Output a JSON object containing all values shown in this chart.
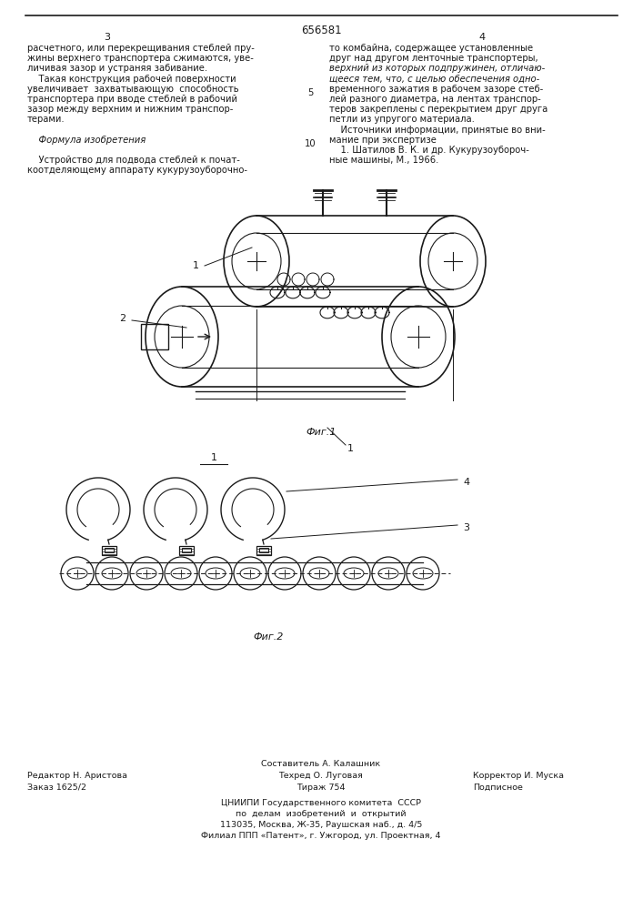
{
  "patent_number": "656581",
  "page_left": "3",
  "page_right": "4",
  "col_left_text": [
    "расчетного, или перекрещивания стеблей пру-",
    "жины верхнего транспортера сжимаются, уве-",
    "личивая зазор и устраняя забивание.",
    "    Такая конструкция рабочей поверхности",
    "увеличивает  захватывающую  способность",
    "транспортера при вводе стеблей в рабочий",
    "зазор между верхним и нижним транспор-",
    "терами.",
    "",
    "    Формула изобретения",
    "",
    "    Устройство для подвода стеблей к почат-",
    "коотделяющему аппарату кукурузоуборочно-"
  ],
  "col_right_text": [
    "то комбайна, содержащее установленные",
    "друг над другом ленточные транспортеры,",
    "верхний из которых подпружинен, отличаю-",
    "щееся тем, что, с целью обеспечения одно-",
    "временного зажатия в рабочем зазоре стеб-",
    "лей разного диаметра, на лентах транспор-",
    "теров закреплены с перекрытием друг друга",
    "петли из упругого материала.",
    "    Источники информации, принятые во вни-",
    "мание при экспертизе",
    "    1. Шатилов В. К. и др. Кукурузоуборoч-",
    "ные машины, М., 1966."
  ],
  "line_number_5": "5",
  "line_number_10": "10",
  "fig1_label": "Фиг.1",
  "fig2_label": "Фиг.2",
  "footer_left": [
    "Редактор Н. Аристова",
    "Заказ 1625/2"
  ],
  "footer_center_top": "Составитель А. Калашник",
  "footer_center_mid": "Техред О. Луговая",
  "footer_center_bot": "Тираж 754",
  "footer_right_top": "Корректор И. Муска",
  "footer_right_bot": "Подписное",
  "footer_institute": [
    "ЦНИИПИ Государственного комитета  СССР",
    "по  делам  изобретений  и  открытий",
    "113035, Москва, Ж-35, Раушская наб., д. 4/5",
    "Филиал ППП «Патент», г. Ужгород, ул. Проектная, 4"
  ],
  "bg_color": "#ffffff",
  "text_color": "#1a1a1a",
  "line_color": "#1a1a1a"
}
